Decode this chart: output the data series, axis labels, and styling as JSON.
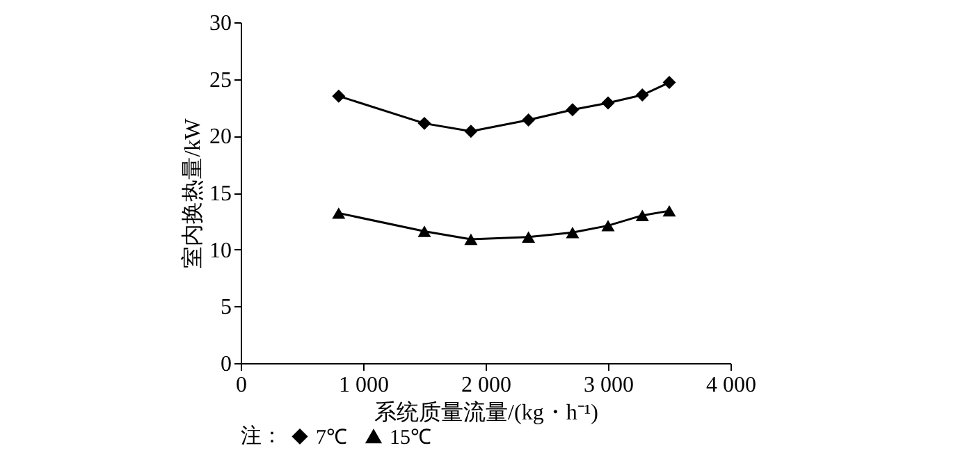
{
  "chart_data": {
    "type": "line",
    "xlabel": "系统质量流量/(kg・h⁻¹)",
    "ylabel": "室内换热量/kW",
    "legend_title": "注：",
    "x": [
      800,
      1500,
      1880,
      2350,
      2710,
      3000,
      3280,
      3500
    ],
    "series": [
      {
        "name": "7℃",
        "color": "#000000",
        "marker": "diamond",
        "values": [
          23.5,
          21.1,
          20.4,
          21.4,
          22.3,
          22.9,
          23.6,
          24.7
        ]
      },
      {
        "name": "15℃",
        "color": "#000000",
        "marker": "triangle",
        "values": [
          13.2,
          11.6,
          10.9,
          11.1,
          11.5,
          12.1,
          13.0,
          13.4
        ]
      }
    ],
    "xlim": [
      0,
      4000
    ],
    "xticks": [
      0,
      {
        "value": 1000,
        "label": "1 000"
      },
      {
        "value": 2000,
        "label": "2 000"
      },
      {
        "value": 3000,
        "label": "3 000"
      },
      {
        "value": 4000,
        "label": "4 000"
      }
    ],
    "ylim": [
      0,
      30
    ],
    "yticks": [
      0,
      5,
      10,
      15,
      20,
      25,
      30
    ],
    "grid": false,
    "legend": "bottom",
    "line_style": "solid"
  }
}
